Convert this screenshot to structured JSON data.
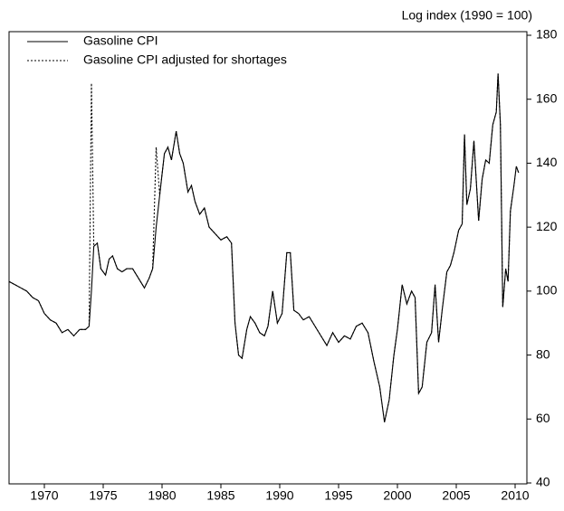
{
  "chart_data": {
    "type": "line",
    "axis_label": "Log index (1990 = 100)",
    "x": [
      1967.0,
      1967.5,
      1968.0,
      1968.5,
      1969.0,
      1969.5,
      1970.0,
      1970.5,
      1971.0,
      1971.5,
      1972.0,
      1972.5,
      1973.0,
      1973.5,
      1973.8,
      1974.0,
      1974.2,
      1974.5,
      1974.8,
      1975.2,
      1975.5,
      1975.8,
      1976.2,
      1976.6,
      1977.0,
      1977.5,
      1978.0,
      1978.5,
      1978.9,
      1979.2,
      1979.5,
      1979.8,
      1980.2,
      1980.5,
      1980.8,
      1981.2,
      1981.5,
      1981.8,
      1982.2,
      1982.5,
      1982.8,
      1983.2,
      1983.6,
      1984.0,
      1984.5,
      1985.0,
      1985.5,
      1985.9,
      1986.2,
      1986.5,
      1986.8,
      1987.2,
      1987.5,
      1987.9,
      1988.3,
      1988.7,
      1989.0,
      1989.4,
      1989.8,
      1990.2,
      1990.6,
      1990.9,
      1991.2,
      1991.6,
      1992.0,
      1992.5,
      1993.0,
      1993.5,
      1994.0,
      1994.5,
      1995.0,
      1995.5,
      1996.0,
      1996.5,
      1997.0,
      1997.5,
      1998.0,
      1998.5,
      1998.9,
      1999.3,
      1999.7,
      2000.0,
      2000.4,
      2000.8,
      2001.2,
      2001.5,
      2001.8,
      2002.1,
      2002.5,
      2002.9,
      2003.2,
      2003.5,
      2003.8,
      2004.2,
      2004.5,
      2004.8,
      2005.2,
      2005.5,
      2005.7,
      2005.9,
      2006.2,
      2006.5,
      2006.9,
      2007.2,
      2007.5,
      2007.8,
      2008.1,
      2008.4,
      2008.55,
      2008.75,
      2008.95,
      2009.2,
      2009.4,
      2009.6,
      2009.9,
      2010.1,
      2010.3
    ],
    "series": [
      {
        "name": "Gasoline CPI",
        "color": "#000000",
        "dash": "solid",
        "values": [
          103,
          102,
          101,
          100,
          98,
          97,
          93,
          91,
          90,
          87,
          88,
          86,
          88,
          88,
          89,
          100,
          114,
          115,
          107,
          105,
          110,
          111,
          107,
          106,
          107,
          107,
          104,
          101,
          104,
          107,
          120,
          130,
          143,
          145,
          141,
          150,
          143,
          140,
          131,
          133,
          128,
          124,
          126,
          120,
          118,
          116,
          117,
          115,
          90,
          80,
          79,
          88,
          92,
          90,
          87,
          86,
          89,
          100,
          90,
          93,
          112,
          112,
          94,
          93,
          91,
          92,
          89,
          86,
          83,
          87,
          84,
          86,
          85,
          89,
          90,
          87,
          78,
          70,
          59,
          66,
          80,
          88,
          102,
          96,
          100,
          98,
          68,
          70,
          84,
          87,
          102,
          84,
          94,
          106,
          108,
          112,
          119,
          121,
          149,
          127,
          132,
          147,
          122,
          135,
          141,
          140,
          152,
          156,
          168,
          152,
          95,
          107,
          103,
          125,
          133,
          139,
          137
        ]
      },
      {
        "name": "Gasoline CPI adjusted for shortages",
        "color": "#000000",
        "dash": "dotted",
        "values": [
          103,
          102,
          101,
          100,
          98,
          97,
          93,
          91,
          90,
          87,
          88,
          86,
          88,
          88,
          89,
          165,
          114,
          115,
          107,
          105,
          110,
          111,
          107,
          106,
          107,
          107,
          104,
          101,
          104,
          107,
          145,
          130,
          143,
          145,
          141,
          150,
          143,
          140,
          131,
          133,
          128,
          124,
          126,
          120,
          118,
          116,
          117,
          115,
          90,
          80,
          79,
          88,
          92,
          90,
          87,
          86,
          89,
          100,
          90,
          93,
          112,
          112,
          94,
          93,
          91,
          92,
          89,
          86,
          83,
          87,
          84,
          86,
          85,
          89,
          90,
          87,
          78,
          70,
          59,
          66,
          80,
          88,
          102,
          96,
          100,
          98,
          68,
          70,
          84,
          87,
          102,
          84,
          94,
          106,
          108,
          112,
          119,
          121,
          149,
          127,
          132,
          147,
          122,
          135,
          141,
          140,
          152,
          156,
          168,
          152,
          95,
          107,
          103,
          125,
          133,
          139,
          137
        ]
      }
    ],
    "xlim": [
      1967,
      2011
    ],
    "xticks": [
      1970,
      1975,
      1980,
      1985,
      1990,
      1995,
      2000,
      2005,
      2010
    ],
    "ylim": [
      40,
      180
    ],
    "yticks": [
      40,
      60,
      80,
      100,
      120,
      140,
      160,
      180
    ],
    "y_axis_side": "right",
    "legend": "upper left",
    "grid": false
  }
}
